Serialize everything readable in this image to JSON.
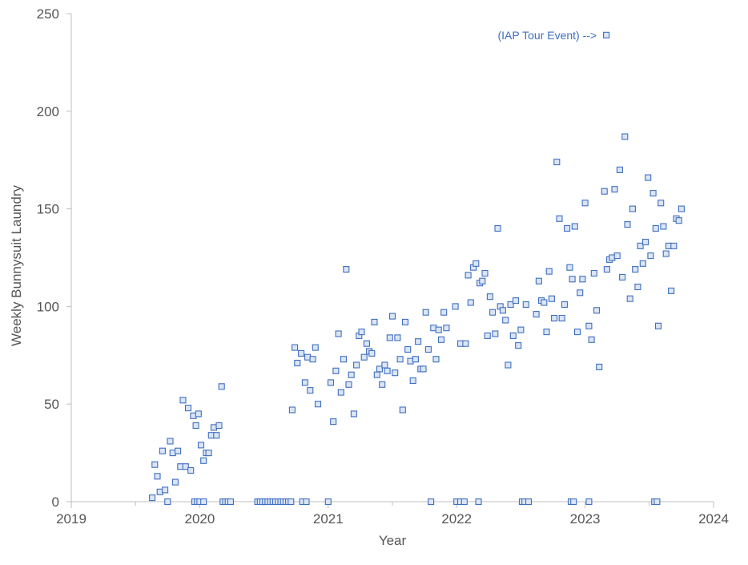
{
  "chart_data": {
    "type": "scatter",
    "title": "",
    "xlabel": "Year",
    "ylabel": "Weekly Bunnysuit Laundry",
    "xlim": [
      2019,
      2024
    ],
    "ylim": [
      0,
      250
    ],
    "x_ticks": [
      "2019",
      "2020",
      "2021",
      "2022",
      "2023",
      "2024"
    ],
    "y_ticks": [
      "0",
      "50",
      "100",
      "150",
      "200",
      "250"
    ],
    "grid": false,
    "legend": "none",
    "marker_color": "#3f6fbf",
    "marker_fill": "#dbe5f4",
    "annotation": {
      "text": "(IAP Tour Event) -->",
      "x": 2023.165,
      "y": 239
    },
    "series": [
      {
        "points": [
          [
            2019.63,
            2
          ],
          [
            2019.65,
            19
          ],
          [
            2019.67,
            13
          ],
          [
            2019.69,
            5
          ],
          [
            2019.71,
            26
          ],
          [
            2019.73,
            6
          ],
          [
            2019.75,
            0
          ],
          [
            2019.77,
            31
          ],
          [
            2019.79,
            25
          ],
          [
            2019.81,
            10
          ],
          [
            2019.83,
            26
          ],
          [
            2019.85,
            18
          ],
          [
            2019.87,
            52
          ],
          [
            2019.89,
            18
          ],
          [
            2019.91,
            48
          ],
          [
            2019.93,
            16
          ],
          [
            2019.95,
            44
          ],
          [
            2019.97,
            39
          ],
          [
            2019.99,
            45
          ],
          [
            2020.01,
            29
          ],
          [
            2020.03,
            21
          ],
          [
            2020.05,
            25
          ],
          [
            2020.07,
            25
          ],
          [
            2020.09,
            34
          ],
          [
            2020.11,
            38
          ],
          [
            2020.13,
            34
          ],
          [
            2020.15,
            39
          ],
          [
            2020.17,
            59
          ],
          [
            2019.96,
            0
          ],
          [
            2019.98,
            0
          ],
          [
            2020.0,
            0
          ],
          [
            2020.03,
            0
          ],
          [
            2020.18,
            0
          ],
          [
            2020.2,
            0
          ],
          [
            2020.22,
            0
          ],
          [
            2020.24,
            0
          ],
          [
            2020.45,
            0
          ],
          [
            2020.47,
            0
          ],
          [
            2020.49,
            0
          ],
          [
            2020.51,
            0
          ],
          [
            2020.53,
            0
          ],
          [
            2020.55,
            0
          ],
          [
            2020.57,
            0
          ],
          [
            2020.59,
            0
          ],
          [
            2020.61,
            0
          ],
          [
            2020.63,
            0
          ],
          [
            2020.65,
            0
          ],
          [
            2020.67,
            0
          ],
          [
            2020.69,
            0
          ],
          [
            2020.71,
            0
          ],
          [
            2020.8,
            0
          ],
          [
            2020.83,
            0
          ],
          [
            2021.0,
            0
          ],
          [
            2020.72,
            47
          ],
          [
            2020.74,
            79
          ],
          [
            2020.76,
            71
          ],
          [
            2020.79,
            76
          ],
          [
            2020.82,
            61
          ],
          [
            2020.84,
            74
          ],
          [
            2020.86,
            57
          ],
          [
            2020.88,
            73
          ],
          [
            2020.9,
            79
          ],
          [
            2020.92,
            50
          ],
          [
            2021.02,
            61
          ],
          [
            2021.04,
            41
          ],
          [
            2021.06,
            67
          ],
          [
            2021.08,
            86
          ],
          [
            2021.1,
            56
          ],
          [
            2021.12,
            73
          ],
          [
            2021.14,
            119
          ],
          [
            2021.16,
            60
          ],
          [
            2021.18,
            65
          ],
          [
            2021.2,
            45
          ],
          [
            2021.22,
            70
          ],
          [
            2021.24,
            85
          ],
          [
            2021.26,
            87
          ],
          [
            2021.28,
            74
          ],
          [
            2021.3,
            81
          ],
          [
            2021.32,
            77
          ],
          [
            2021.34,
            76
          ],
          [
            2021.36,
            92
          ],
          [
            2021.38,
            65
          ],
          [
            2021.4,
            68
          ],
          [
            2021.42,
            60
          ],
          [
            2021.44,
            70
          ],
          [
            2021.46,
            67
          ],
          [
            2021.48,
            84
          ],
          [
            2021.5,
            95
          ],
          [
            2021.52,
            66
          ],
          [
            2021.54,
            84
          ],
          [
            2021.56,
            73
          ],
          [
            2021.58,
            47
          ],
          [
            2021.6,
            92
          ],
          [
            2021.62,
            78
          ],
          [
            2021.64,
            72
          ],
          [
            2021.66,
            62
          ],
          [
            2021.68,
            73
          ],
          [
            2021.7,
            82
          ],
          [
            2021.72,
            68
          ],
          [
            2021.74,
            68
          ],
          [
            2021.76,
            97
          ],
          [
            2021.78,
            78
          ],
          [
            2021.82,
            89
          ],
          [
            2021.84,
            73
          ],
          [
            2021.86,
            88
          ],
          [
            2021.88,
            83
          ],
          [
            2021.9,
            97
          ],
          [
            2021.92,
            89
          ],
          [
            2021.8,
            0
          ],
          [
            2022.0,
            0
          ],
          [
            2022.03,
            0
          ],
          [
            2022.06,
            0
          ],
          [
            2022.17,
            0
          ],
          [
            2021.99,
            100
          ],
          [
            2022.03,
            81
          ],
          [
            2022.07,
            81
          ],
          [
            2022.09,
            116
          ],
          [
            2022.11,
            102
          ],
          [
            2022.13,
            120
          ],
          [
            2022.15,
            122
          ],
          [
            2022.18,
            112
          ],
          [
            2022.2,
            113
          ],
          [
            2022.22,
            117
          ],
          [
            2022.24,
            85
          ],
          [
            2022.26,
            105
          ],
          [
            2022.28,
            97
          ],
          [
            2022.3,
            86
          ],
          [
            2022.32,
            140
          ],
          [
            2022.34,
            100
          ],
          [
            2022.36,
            98
          ],
          [
            2022.38,
            93
          ],
          [
            2022.4,
            70
          ],
          [
            2022.42,
            101
          ],
          [
            2022.44,
            85
          ],
          [
            2022.46,
            103
          ],
          [
            2022.48,
            80
          ],
          [
            2022.5,
            88
          ],
          [
            2022.54,
            101
          ],
          [
            2022.51,
            0
          ],
          [
            2022.53,
            0
          ],
          [
            2022.56,
            0
          ],
          [
            2022.62,
            96
          ],
          [
            2022.64,
            113
          ],
          [
            2022.66,
            103
          ],
          [
            2022.68,
            102
          ],
          [
            2022.7,
            87
          ],
          [
            2022.72,
            118
          ],
          [
            2022.74,
            104
          ],
          [
            2022.76,
            94
          ],
          [
            2022.78,
            174
          ],
          [
            2022.8,
            145
          ],
          [
            2022.82,
            94
          ],
          [
            2022.84,
            101
          ],
          [
            2022.86,
            140
          ],
          [
            2022.88,
            120
          ],
          [
            2022.9,
            114
          ],
          [
            2022.92,
            141
          ],
          [
            2022.94,
            87
          ],
          [
            2022.96,
            107
          ],
          [
            2022.98,
            114
          ],
          [
            2023.0,
            153
          ],
          [
            2023.03,
            90
          ],
          [
            2023.05,
            83
          ],
          [
            2023.07,
            117
          ],
          [
            2023.09,
            98
          ],
          [
            2023.11,
            69
          ],
          [
            2023.15,
            159
          ],
          [
            2023.17,
            119
          ],
          [
            2023.19,
            124
          ],
          [
            2023.21,
            125
          ],
          [
            2023.23,
            160
          ],
          [
            2023.25,
            126
          ],
          [
            2023.27,
            170
          ],
          [
            2023.29,
            115
          ],
          [
            2023.31,
            187
          ],
          [
            2023.33,
            142
          ],
          [
            2023.35,
            104
          ],
          [
            2023.37,
            150
          ],
          [
            2023.39,
            119
          ],
          [
            2023.41,
            110
          ],
          [
            2023.43,
            131
          ],
          [
            2023.45,
            122
          ],
          [
            2023.47,
            133
          ],
          [
            2023.49,
            166
          ],
          [
            2023.51,
            126
          ],
          [
            2023.53,
            158
          ],
          [
            2023.55,
            140
          ],
          [
            2023.57,
            90
          ],
          [
            2023.59,
            153
          ],
          [
            2023.61,
            141
          ],
          [
            2023.63,
            127
          ],
          [
            2023.65,
            131
          ],
          [
            2023.67,
            108
          ],
          [
            2023.69,
            131
          ],
          [
            2023.71,
            145
          ],
          [
            2023.73,
            144
          ],
          [
            2023.75,
            150
          ],
          [
            2022.89,
            0
          ],
          [
            2022.91,
            0
          ],
          [
            2023.03,
            0
          ],
          [
            2023.54,
            0
          ],
          [
            2023.56,
            0
          ],
          [
            2023.165,
            239
          ]
        ]
      }
    ]
  }
}
